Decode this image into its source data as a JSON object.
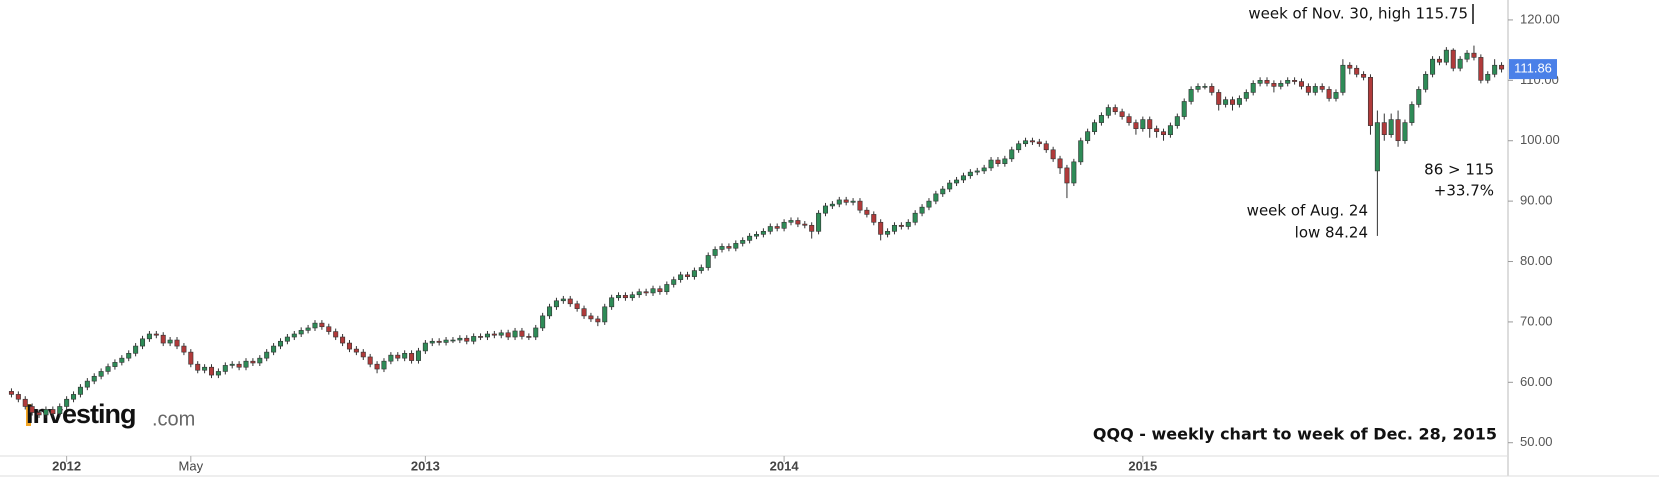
{
  "chart_data": {
    "type": "candlestick",
    "title": "QQQ - weekly chart to week of Dec. 28, 2015",
    "logo": "Investing",
    "logo_suffix": ".com",
    "annotations": [
      "week of Nov. 30, high 115.75",
      "86 > 115",
      "+33.7%",
      "week of Aug. 24",
      "low 84.24"
    ],
    "last_price": 111.86,
    "up_color": "#2e8b57",
    "down_color": "#b03a3a",
    "ylim": [
      47.8,
      123.3
    ],
    "yticks": [
      {
        "value": 50,
        "label": "50.00"
      },
      {
        "value": 60,
        "label": "60.00"
      },
      {
        "value": 70,
        "label": "70.00"
      },
      {
        "value": 80,
        "label": "80.00"
      },
      {
        "value": 90,
        "label": "90.00"
      },
      {
        "value": 100,
        "label": "100.00"
      },
      {
        "value": 110,
        "label": "110.00"
      },
      {
        "value": 120,
        "label": "120.00"
      }
    ],
    "grid": false,
    "categories": [
      null,
      null,
      null,
      null,
      null,
      null,
      null,
      null,
      "2012",
      null,
      null,
      null,
      null,
      null,
      null,
      null,
      null,
      null,
      null,
      null,
      null,
      null,
      null,
      null,
      null,
      null,
      "May",
      null,
      null,
      null,
      null,
      null,
      null,
      null,
      null,
      null,
      null,
      null,
      null,
      null,
      null,
      null,
      null,
      null,
      null,
      null,
      null,
      null,
      null,
      null,
      null,
      null,
      null,
      null,
      null,
      null,
      null,
      null,
      null,
      null,
      "2013",
      null,
      null,
      null,
      null,
      null,
      null,
      null,
      null,
      null,
      null,
      null,
      null,
      null,
      null,
      null,
      null,
      null,
      null,
      null,
      null,
      null,
      null,
      null,
      null,
      null,
      null,
      null,
      null,
      null,
      null,
      null,
      null,
      null,
      null,
      null,
      null,
      null,
      null,
      null,
      null,
      null,
      null,
      null,
      null,
      null,
      null,
      null,
      null,
      null,
      null,
      null,
      "2014",
      null,
      null,
      null,
      null,
      null,
      null,
      null,
      null,
      null,
      null,
      null,
      null,
      null,
      null,
      null,
      null,
      null,
      null,
      null,
      null,
      null,
      null,
      null,
      null,
      null,
      null,
      null,
      null,
      null,
      null,
      null,
      null,
      null,
      null,
      null,
      null,
      null,
      null,
      null,
      null,
      null,
      null,
      null,
      null,
      null,
      null,
      null,
      null,
      null,
      null,
      null,
      "2015",
      null,
      null,
      null,
      null,
      null,
      null,
      null,
      null,
      null,
      null,
      null,
      null,
      null,
      null,
      null,
      null,
      null,
      null,
      null,
      null,
      null,
      null,
      null,
      null,
      null,
      null,
      null,
      null,
      null,
      null,
      null,
      null,
      null,
      null,
      null,
      null,
      null,
      null,
      null,
      null,
      null,
      null,
      null,
      null,
      null,
      null,
      null,
      null,
      null,
      null,
      null,
      null
    ],
    "open": [
      58.5,
      58.0,
      57.2,
      56.0,
      55.0,
      54.6,
      55.5,
      54.8,
      56.0,
      57.2,
      58.0,
      59.2,
      60.2,
      61.0,
      61.8,
      62.6,
      63.3,
      64.0,
      64.8,
      66.0,
      67.2,
      68.0,
      67.8,
      66.5,
      67.0,
      66.0,
      65.0,
      63.0,
      62.0,
      62.5,
      61.2,
      61.8,
      62.8,
      63.0,
      62.5,
      63.5,
      63.2,
      64.0,
      65.0,
      66.0,
      66.8,
      67.5,
      68.0,
      68.6,
      69.0,
      69.8,
      69.2,
      68.4,
      67.5,
      66.5,
      65.5,
      65.0,
      64.2,
      63.0,
      62.2,
      63.5,
      64.5,
      64.0,
      64.8,
      63.6,
      65.2,
      66.5,
      66.8,
      66.6,
      67.0,
      67.0,
      67.3,
      66.8,
      67.6,
      67.5,
      68.0,
      67.8,
      68.2,
      67.5,
      68.5,
      67.6,
      67.5,
      69.0,
      71.0,
      72.5,
      73.5,
      73.8,
      73.0,
      72.2,
      71.0,
      70.5,
      70.0,
      72.5,
      74.0,
      74.4,
      74.0,
      74.5,
      75.0,
      74.8,
      75.5,
      75.0,
      76.2,
      77.0,
      77.8,
      77.5,
      78.5,
      79.0,
      81.0,
      82.0,
      82.5,
      82.2,
      83.0,
      83.5,
      84.2,
      84.5,
      85.0,
      85.8,
      85.5,
      86.5,
      86.8,
      86.2,
      86.0,
      85.0,
      88.0,
      89.2,
      89.5,
      90.2,
      89.8,
      90.0,
      88.5,
      87.8,
      86.5,
      84.5,
      85.0,
      86.0,
      85.8,
      86.5,
      88.0,
      89.0,
      90.0,
      91.2,
      92.0,
      93.0,
      93.5,
      94.2,
      94.8,
      95.0,
      95.5,
      96.8,
      96.2,
      97.0,
      98.5,
      99.5,
      100.0,
      99.8,
      99.5,
      98.5,
      97.0,
      95.5,
      93.0,
      96.5,
      100.0,
      101.5,
      103.0,
      104.2,
      105.5,
      104.8,
      104.0,
      103.0,
      102.0,
      103.5,
      102.0,
      101.5,
      101.0,
      102.5,
      104.0,
      106.5,
      108.5,
      109.0,
      109.0,
      108.0,
      106.0,
      106.8,
      106.0,
      107.0,
      108.0,
      109.5,
      110.0,
      109.5,
      109.0,
      109.5,
      110.0,
      109.8,
      109.0,
      108.0,
      109.0,
      108.5,
      107.0,
      108.0,
      112.5,
      112.0,
      111.0,
      110.5,
      95.0,
      103.0,
      101.0,
      103.5,
      100.0,
      103.0,
      106.0,
      108.5,
      111.0,
      113.5,
      113.0,
      115.0,
      112.0,
      113.5,
      114.5,
      113.8,
      110.0,
      111.0,
      112.5
    ],
    "high": [
      59.0,
      58.5,
      57.7,
      56.5,
      55.5,
      56.0,
      56.0,
      56.5,
      57.7,
      58.5,
      59.7,
      60.7,
      61.5,
      62.3,
      63.1,
      63.8,
      64.5,
      65.3,
      66.5,
      67.7,
      68.5,
      68.5,
      68.3,
      67.5,
      67.5,
      66.5,
      65.5,
      63.5,
      63.0,
      63.0,
      62.3,
      63.3,
      63.5,
      63.5,
      64.0,
      64.0,
      64.5,
      65.5,
      66.5,
      67.3,
      68.0,
      68.5,
      69.1,
      69.5,
      70.3,
      70.3,
      69.7,
      68.9,
      68.0,
      67.0,
      66.0,
      65.5,
      64.7,
      63.5,
      64.0,
      65.0,
      65.0,
      65.3,
      65.3,
      65.7,
      67.0,
      67.3,
      67.3,
      67.5,
      67.5,
      67.8,
      67.8,
      68.1,
      68.1,
      68.5,
      68.5,
      68.7,
      68.7,
      69.0,
      69.0,
      68.1,
      69.5,
      71.5,
      73.0,
      74.0,
      74.3,
      74.3,
      73.5,
      72.7,
      71.5,
      71.0,
      73.0,
      74.5,
      74.9,
      74.9,
      75.0,
      75.5,
      75.5,
      76.0,
      76.0,
      76.7,
      77.5,
      78.3,
      78.3,
      79.0,
      79.5,
      81.5,
      82.5,
      83.0,
      83.0,
      83.5,
      84.0,
      84.7,
      85.0,
      85.5,
      86.3,
      86.3,
      87.0,
      87.3,
      87.3,
      86.7,
      86.5,
      88.5,
      89.7,
      90.0,
      90.7,
      90.7,
      90.5,
      90.5,
      89.0,
      88.3,
      87.0,
      85.5,
      86.5,
      86.5,
      87.0,
      88.5,
      89.5,
      90.5,
      91.7,
      92.5,
      93.5,
      94.0,
      94.7,
      95.3,
      95.5,
      96.0,
      97.3,
      97.3,
      97.5,
      99.0,
      100.0,
      100.5,
      100.5,
      100.3,
      100.0,
      99.0,
      97.5,
      96.0,
      97.0,
      100.5,
      102.0,
      103.5,
      104.7,
      106.0,
      106.0,
      105.3,
      104.5,
      103.5,
      104.0,
      104.0,
      102.5,
      102.0,
      103.0,
      104.5,
      107.0,
      109.0,
      109.5,
      109.5,
      109.5,
      108.5,
      107.3,
      107.3,
      107.5,
      108.5,
      110.0,
      110.5,
      110.5,
      110.0,
      110.0,
      110.5,
      110.5,
      110.3,
      109.5,
      109.5,
      109.5,
      109.0,
      108.5,
      113.5,
      113.0,
      112.5,
      111.5,
      111.0,
      105.0,
      104.5,
      104.5,
      105.0,
      103.5,
      106.5,
      109.0,
      111.5,
      114.0,
      114.0,
      115.5,
      115.3,
      114.0,
      115.0,
      115.75,
      114.3,
      111.5,
      113.5,
      113.0
    ],
    "low": [
      57.5,
      56.7,
      55.5,
      54.5,
      54.1,
      54.1,
      54.3,
      54.3,
      55.5,
      56.7,
      57.5,
      58.7,
      59.7,
      60.5,
      61.3,
      62.1,
      62.8,
      63.5,
      64.3,
      65.5,
      66.7,
      67.3,
      66.0,
      66.0,
      65.5,
      64.5,
      62.5,
      61.5,
      61.5,
      60.7,
      60.7,
      61.3,
      62.3,
      62.0,
      62.0,
      62.7,
      62.7,
      63.5,
      64.5,
      65.5,
      66.3,
      67.0,
      67.5,
      68.1,
      68.5,
      68.7,
      67.9,
      67.0,
      66.0,
      65.0,
      64.5,
      63.7,
      62.5,
      61.5,
      61.7,
      63.0,
      63.5,
      63.5,
      63.1,
      63.1,
      64.7,
      66.0,
      66.1,
      66.1,
      66.5,
      66.5,
      66.3,
      66.3,
      67.0,
      67.0,
      67.3,
      67.3,
      67.0,
      67.0,
      67.1,
      67.0,
      67.0,
      68.5,
      70.5,
      72.0,
      73.0,
      72.5,
      71.7,
      70.5,
      70.0,
      69.3,
      69.5,
      72.0,
      73.5,
      73.5,
      73.5,
      74.0,
      74.3,
      74.3,
      74.5,
      74.5,
      75.7,
      76.5,
      77.0,
      77.0,
      78.0,
      78.5,
      80.5,
      81.5,
      81.7,
      81.7,
      82.5,
      83.0,
      83.7,
      84.0,
      84.5,
      85.0,
      85.0,
      86.0,
      85.7,
      85.5,
      83.8,
      84.5,
      87.5,
      88.7,
      89.0,
      89.3,
      89.3,
      88.0,
      87.3,
      86.0,
      83.5,
      84.0,
      84.5,
      85.3,
      85.3,
      86.0,
      87.5,
      88.5,
      89.5,
      90.7,
      91.5,
      92.5,
      93.0,
      93.7,
      94.3,
      94.5,
      95.0,
      95.7,
      95.7,
      96.5,
      98.0,
      99.0,
      99.3,
      99.0,
      98.0,
      96.5,
      94.5,
      90.5,
      92.5,
      96.0,
      99.5,
      101.0,
      102.5,
      103.7,
      104.3,
      103.5,
      102.5,
      101.0,
      101.5,
      100.5,
      100.5,
      100.0,
      100.5,
      102.0,
      103.5,
      106.0,
      108.0,
      108.5,
      107.5,
      105.0,
      105.5,
      105.0,
      105.5,
      106.5,
      107.5,
      109.0,
      109.0,
      108.0,
      108.5,
      109.0,
      109.3,
      108.5,
      107.5,
      107.5,
      108.0,
      106.5,
      106.5,
      107.5,
      111.0,
      110.5,
      110.0,
      101.0,
      84.24,
      100.0,
      100.5,
      99.0,
      99.5,
      102.5,
      105.5,
      108.0,
      110.5,
      112.5,
      112.5,
      111.5,
      111.5,
      113.0,
      113.3,
      109.5,
      109.5,
      110.5,
      111.3
    ],
    "close": [
      58.0,
      57.2,
      56.0,
      55.0,
      54.6,
      55.5,
      54.8,
      56.0,
      57.2,
      58.0,
      59.2,
      60.2,
      61.0,
      61.8,
      62.6,
      63.3,
      64.0,
      64.8,
      66.0,
      67.2,
      68.0,
      67.8,
      66.5,
      67.0,
      66.0,
      65.0,
      63.0,
      62.0,
      62.5,
      61.2,
      61.8,
      62.8,
      63.0,
      62.5,
      63.5,
      63.2,
      64.0,
      65.0,
      66.0,
      66.8,
      67.5,
      68.0,
      68.6,
      69.0,
      69.8,
      69.2,
      68.4,
      67.5,
      66.5,
      65.5,
      65.0,
      64.2,
      63.0,
      62.2,
      63.5,
      64.5,
      64.0,
      64.8,
      63.6,
      65.2,
      66.5,
      66.8,
      66.6,
      67.0,
      67.0,
      67.3,
      66.8,
      67.6,
      67.5,
      68.0,
      67.8,
      68.2,
      67.5,
      68.5,
      67.6,
      67.5,
      69.0,
      71.0,
      72.5,
      73.5,
      73.8,
      73.0,
      72.2,
      71.0,
      70.5,
      70.0,
      72.5,
      74.0,
      74.4,
      74.0,
      74.5,
      75.0,
      74.8,
      75.5,
      75.0,
      76.2,
      77.0,
      77.8,
      77.5,
      78.5,
      79.0,
      81.0,
      82.0,
      82.5,
      82.2,
      83.0,
      83.5,
      84.2,
      84.5,
      85.0,
      85.8,
      85.5,
      86.5,
      86.8,
      86.2,
      86.0,
      85.0,
      88.0,
      89.2,
      89.5,
      90.2,
      89.8,
      90.0,
      88.5,
      87.8,
      86.5,
      84.5,
      85.0,
      86.0,
      85.8,
      86.5,
      88.0,
      89.0,
      90.0,
      91.2,
      92.0,
      93.0,
      93.5,
      94.2,
      94.8,
      95.0,
      95.5,
      96.8,
      96.2,
      97.0,
      98.5,
      99.5,
      100.0,
      99.8,
      99.5,
      98.5,
      97.0,
      95.5,
      93.0,
      96.5,
      100.0,
      101.5,
      103.0,
      104.2,
      105.5,
      104.8,
      104.0,
      103.0,
      102.0,
      103.5,
      102.0,
      101.5,
      101.0,
      102.5,
      104.0,
      106.5,
      108.5,
      109.0,
      109.0,
      108.0,
      106.0,
      106.8,
      106.0,
      107.0,
      108.0,
      109.5,
      110.0,
      109.5,
      109.0,
      109.5,
      110.0,
      109.8,
      109.0,
      108.0,
      109.0,
      108.5,
      107.0,
      108.0,
      112.5,
      112.0,
      111.0,
      110.5,
      102.5,
      103.0,
      101.0,
      103.5,
      100.0,
      103.0,
      106.0,
      108.5,
      111.0,
      113.5,
      113.0,
      115.0,
      112.0,
      113.5,
      114.5,
      113.8,
      110.0,
      111.0,
      112.5,
      111.86
    ]
  }
}
